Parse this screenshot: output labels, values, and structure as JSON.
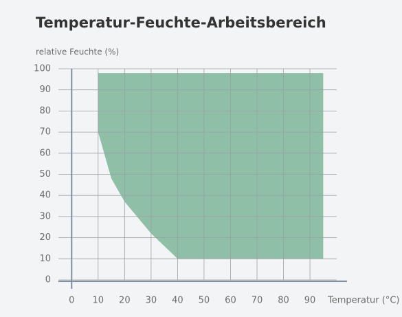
{
  "chart_data": {
    "type": "area",
    "title": "Temperatur-Feuchte-Arbeitsbereich",
    "ylabel": "relative Feuchte (%)",
    "xlabel": "Temperatur (°C)",
    "x": [
      10,
      95,
      95,
      40,
      30,
      20,
      15,
      10
    ],
    "values": [
      98,
      98,
      10,
      10,
      22,
      37,
      48,
      70
    ],
    "color": "#8fbfa6",
    "xlim": [
      -5,
      104
    ],
    "ylim": [
      0,
      100
    ],
    "xticks": [
      0,
      10,
      20,
      30,
      40,
      50,
      60,
      70,
      80,
      90
    ],
    "yticks": [
      0,
      10,
      20,
      30,
      40,
      50,
      60,
      70,
      80,
      90,
      100
    ],
    "grid": true
  }
}
